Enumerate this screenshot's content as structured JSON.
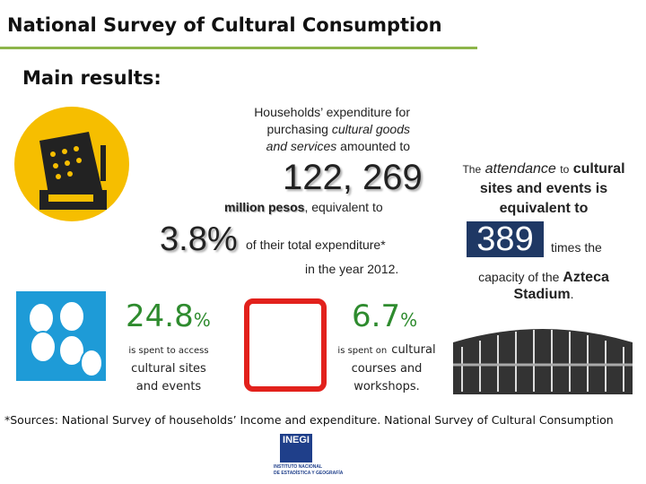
{
  "header": {
    "title": "National Survey of Cultural Consumption",
    "subtitle": "Main results:"
  },
  "expenditure": {
    "lines": [
      "Households’ expenditure for",
      "purchasing",
      "cultural goods",
      "and",
      "services",
      "amounted to"
    ],
    "amount": "122, 269",
    "unit_bold": "million pesos",
    "unit_rest": ", equivalent to",
    "share": "3.8%",
    "share_text": "of their total expenditure*",
    "year_text": "in the year 2012."
  },
  "attendance": {
    "lines": [
      "The",
      "attendance",
      "to",
      "cultural",
      "sites and events is",
      "equivalent to"
    ],
    "number": "389",
    "times": "times the",
    "capacity": "capacity of the",
    "stadium": "Azteca",
    "stadium2": "Stadium",
    "period": "."
  },
  "access": {
    "value": "24.8",
    "unit": "%",
    "lines": [
      "is spent to access",
      "cultural sites",
      "and events"
    ]
  },
  "courses": {
    "value": "6.7",
    "unit": "%",
    "lines": [
      "is spent on",
      "cultural",
      "courses and",
      "workshops."
    ]
  },
  "footnote": "*Sources: National Survey of households’ Income and expenditure. National Survey of Cultural Consumption",
  "logo": {
    "name": "INEGI",
    "lines": [
      "INSTITUTO NACIONAL",
      "DE ESTADÍSTICA Y GEOGRAFÍA"
    ]
  }
}
